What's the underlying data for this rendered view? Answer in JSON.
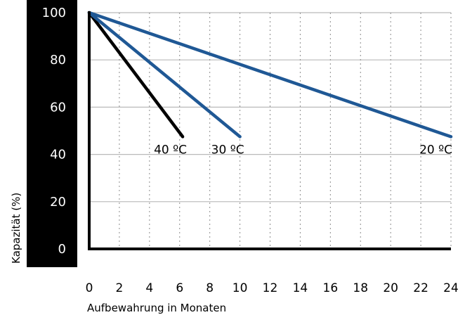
{
  "chart_data": {
    "type": "line",
    "xlabel": "Aufbewahrung in Monaten",
    "ylabel": "Kapazität (%)",
    "xlim": [
      0,
      24
    ],
    "ylim": [
      0,
      100
    ],
    "x_ticks": [
      "0",
      "2",
      "4",
      "6",
      "8",
      "10",
      "12",
      "14",
      "16",
      "18",
      "20",
      "22",
      "24"
    ],
    "y_ticks": [
      "0",
      "20",
      "40",
      "60",
      "80",
      "100"
    ],
    "grid": true,
    "series": [
      {
        "name": "40 °C",
        "label": "40 ºC",
        "color": "#000000",
        "x": [
          0,
          6.2
        ],
        "y": [
          100,
          47.5
        ]
      },
      {
        "name": "30 °C",
        "label": "30 ºC",
        "color": "#1f5895",
        "x": [
          0,
          10
        ],
        "y": [
          100,
          47.5
        ]
      },
      {
        "name": "20 °C",
        "label": "20 ºC",
        "color": "#1f5895",
        "x": [
          0,
          24
        ],
        "y": [
          100,
          47.5
        ]
      }
    ]
  }
}
